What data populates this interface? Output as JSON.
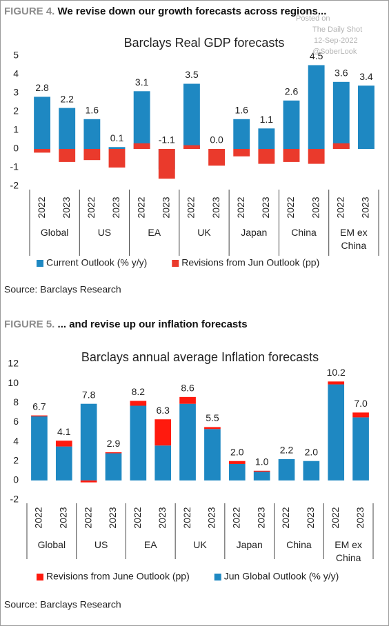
{
  "watermark": {
    "lines": [
      "Posted on",
      "The Daily Shot",
      "12-Sep-2022",
      "@SoberLook"
    ]
  },
  "chart_data": [
    {
      "figure_label": "FIGURE 4.",
      "heading": "We revise down our growth forecasts across regions...",
      "type": "bar",
      "stacked": false,
      "title": "Barclays Real GDP forecasts",
      "categories": [
        "2022",
        "2023",
        "2022",
        "2023",
        "2022",
        "2023",
        "2022",
        "2023",
        "2022",
        "2023",
        "2022",
        "2023",
        "2022",
        "2023"
      ],
      "groups": [
        "Global",
        "US",
        "EA",
        "UK",
        "Japan",
        "China",
        "EM ex China"
      ],
      "series": [
        {
          "name": "Current Outlook (% y/y)",
          "color": "#1e88c2",
          "values": [
            2.8,
            2.2,
            1.6,
            0.1,
            3.1,
            -1.1,
            3.5,
            0.0,
            1.6,
            1.1,
            2.6,
            4.5,
            3.6,
            3.4
          ],
          "value_labels": [
            "2.8",
            "2.2",
            "1.6",
            "0.1",
            "3.1",
            "-1.1",
            "3.5",
            "0.0",
            "1.6",
            "1.1",
            "2.6",
            "4.5",
            "3.6",
            "3.4"
          ]
        },
        {
          "name": "Revisions from Jun Outlook (pp)",
          "color": "#ea3a2c",
          "values": [
            -0.2,
            -0.7,
            -0.6,
            -1.0,
            0.3,
            -1.6,
            0.2,
            -0.9,
            -0.4,
            -0.8,
            -0.7,
            -0.8,
            0.3,
            0.0
          ]
        }
      ],
      "ylim": [
        -2,
        5
      ],
      "yticks": [
        -2,
        -1,
        0,
        1,
        2,
        3,
        4,
        5
      ],
      "legend": "bottom",
      "source": "Source: Barclays Research"
    },
    {
      "figure_label": "FIGURE 5.",
      "heading": "... and revise up our inflation forecasts",
      "type": "bar",
      "stacked": true,
      "title": "Barclays annual average Inflation forecasts",
      "categories": [
        "2022",
        "2023",
        "2022",
        "2023",
        "2022",
        "2023",
        "2022",
        "2023",
        "2022",
        "2023",
        "2022",
        "2023",
        "2022",
        "2023"
      ],
      "groups": [
        "Global",
        "US",
        "EA",
        "UK",
        "Japan",
        "China",
        "EM ex China"
      ],
      "series": [
        {
          "name": "Revisions from June Outlook (pp)",
          "color": "#ff1a0e",
          "values": [
            0.1,
            0.6,
            -0.2,
            0.1,
            0.5,
            2.7,
            0.7,
            0.2,
            0.3,
            0.1,
            0.0,
            0.0,
            0.3,
            0.5
          ]
        },
        {
          "name": "Jun Global Outlook (% y/y)",
          "color": "#1e88c2",
          "values": [
            6.6,
            3.5,
            7.9,
            2.8,
            7.7,
            3.6,
            7.9,
            5.3,
            1.7,
            0.9,
            2.2,
            2.0,
            9.9,
            6.5
          ]
        }
      ],
      "labels": {
        "values": [
          6.7,
          4.1,
          7.8,
          2.9,
          8.2,
          6.3,
          8.6,
          5.5,
          2.0,
          1.0,
          2.2,
          2.0,
          10.2,
          7.0
        ],
        "value_labels": [
          "6.7",
          "4.1",
          "7.8",
          "2.9",
          "8.2",
          "6.3",
          "8.6",
          "5.5",
          "2.0",
          "1.0",
          "2.2",
          "2.0",
          "10.2",
          "7.0"
        ]
      },
      "ylim": [
        -2,
        12
      ],
      "yticks": [
        -2,
        0,
        2,
        4,
        6,
        8,
        10,
        12
      ],
      "legend": "bottom",
      "source": "Source: Barclays Research"
    }
  ]
}
